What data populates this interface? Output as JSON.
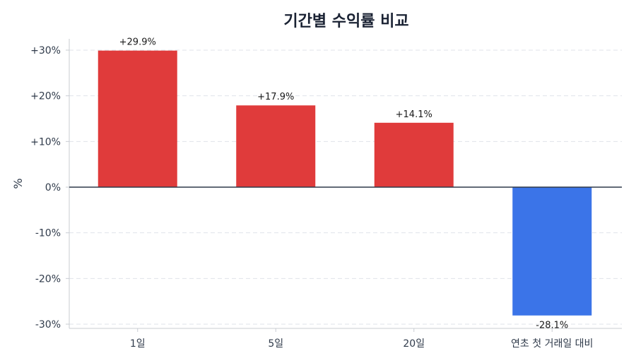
{
  "chart_data": {
    "type": "bar",
    "title": "기간별 수익률 비교",
    "ylabel": "%",
    "xlabel": "",
    "categories": [
      "1일",
      "5일",
      "20일",
      "연초 첫 거래일 대비"
    ],
    "values": [
      29.9,
      17.9,
      14.1,
      -28.1
    ],
    "data_labels": [
      "+29.9%",
      "+17.9%",
      "+14.1%",
      "-28.1%"
    ],
    "ylim": [
      -30,
      30
    ],
    "yticks": [
      30,
      20,
      10,
      0,
      -10,
      -20,
      -30
    ],
    "ytick_labels": [
      "+30%",
      "+20%",
      "+10%",
      "0%",
      "-10%",
      "-20%",
      "-30%"
    ],
    "grid": true,
    "legend": "none",
    "colors": {
      "positive": "#e03b3b",
      "negative": "#3b74e8"
    }
  }
}
